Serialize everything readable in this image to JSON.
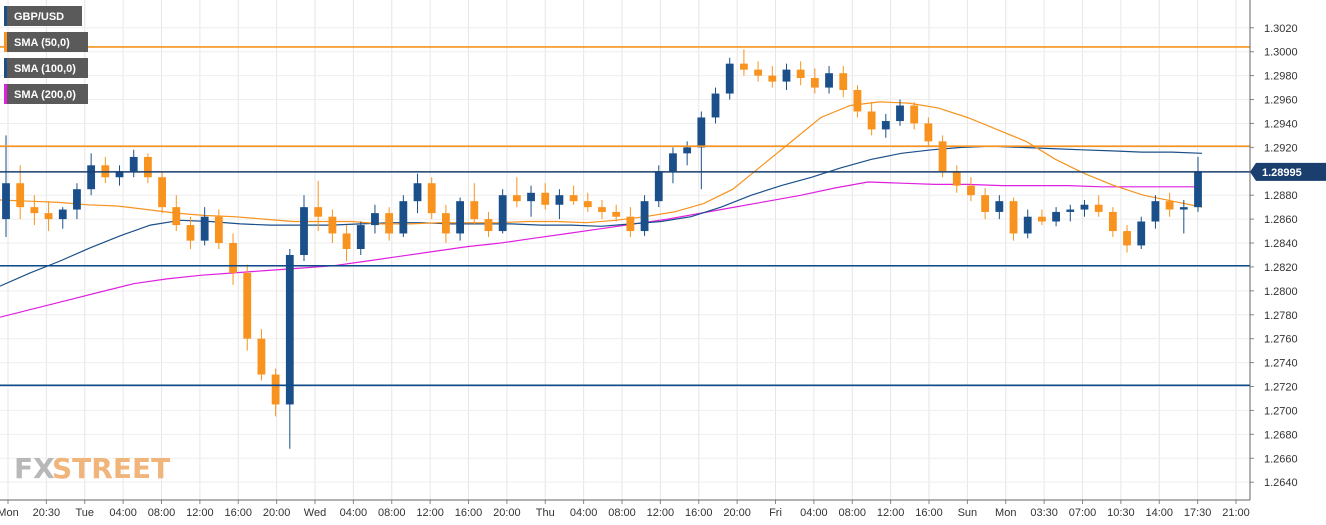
{
  "chart_data": {
    "type": "candlestick",
    "instrument": "GBP/USD",
    "current_price": "1.28995",
    "y_range": [
      1.2625,
      1.3035
    ],
    "y_ticks": [
      "1.3020",
      "1.3000",
      "1.2980",
      "1.2960",
      "1.2940",
      "1.2920",
      "1.2900",
      "1.2880",
      "1.2860",
      "1.2840",
      "1.2820",
      "1.2800",
      "1.2780",
      "1.2760",
      "1.2740",
      "1.2720",
      "1.2700",
      "1.2680",
      "1.2660",
      "1.2640"
    ],
    "x_ticks": [
      "Mon",
      "20:30",
      "Tue",
      "04:00",
      "08:00",
      "12:00",
      "16:00",
      "20:00",
      "Wed",
      "04:00",
      "08:00",
      "12:00",
      "16:00",
      "20:00",
      "Thu",
      "04:00",
      "08:00",
      "12:00",
      "16:00",
      "20:00",
      "Fri",
      "04:00",
      "08:00",
      "12:00",
      "16:00",
      "Sun",
      "Mon",
      "03:30",
      "07:00",
      "10:30",
      "14:00",
      "17:30",
      "21:00"
    ],
    "legend": [
      {
        "label": "GBP/USD",
        "color": "#1a4f8a"
      },
      {
        "label": "SMA (50,0)",
        "color": "#f7931e"
      },
      {
        "label": "SMA (100,0)",
        "color": "#1a4f8a"
      },
      {
        "label": "SMA (200,0)",
        "color": "#e020e0"
      }
    ],
    "horizontal_levels": [
      {
        "value": 1.3004,
        "color": "#f7931e"
      },
      {
        "value": 1.2921,
        "color": "#f7931e"
      },
      {
        "value": 1.28995,
        "color": "#1a3f6f"
      },
      {
        "value": 1.2821,
        "color": "#0d4a8a"
      },
      {
        "value": 1.2721,
        "color": "#0d4a8a"
      }
    ],
    "candles": [
      [
        1.286,
        1.293,
        1.2845,
        1.289
      ],
      [
        1.289,
        1.2905,
        1.286,
        1.287
      ],
      [
        1.287,
        1.288,
        1.2855,
        1.2865
      ],
      [
        1.2865,
        1.2875,
        1.285,
        1.286
      ],
      [
        1.286,
        1.287,
        1.2852,
        1.2868
      ],
      [
        1.2868,
        1.289,
        1.286,
        1.2885
      ],
      [
        1.2885,
        1.2915,
        1.288,
        1.2905
      ],
      [
        1.2905,
        1.2912,
        1.289,
        1.2895
      ],
      [
        1.2895,
        1.2905,
        1.2888,
        1.29
      ],
      [
        1.29,
        1.2918,
        1.2895,
        1.2912
      ],
      [
        1.2912,
        1.2915,
        1.289,
        1.2895
      ],
      [
        1.2895,
        1.29,
        1.2865,
        1.287
      ],
      [
        1.287,
        1.288,
        1.285,
        1.2855
      ],
      [
        1.2855,
        1.2862,
        1.2835,
        1.2842
      ],
      [
        1.2842,
        1.287,
        1.2838,
        1.2862
      ],
      [
        1.2862,
        1.2868,
        1.2835,
        1.284
      ],
      [
        1.284,
        1.2848,
        1.2805,
        1.2815
      ],
      [
        1.2815,
        1.2822,
        1.275,
        1.276
      ],
      [
        1.276,
        1.2768,
        1.2725,
        1.273
      ],
      [
        1.273,
        1.2735,
        1.2695,
        1.2705
      ],
      [
        1.2705,
        1.2835,
        1.2668,
        1.283
      ],
      [
        1.283,
        1.288,
        1.2825,
        1.287
      ],
      [
        1.287,
        1.2892,
        1.285,
        1.2862
      ],
      [
        1.2862,
        1.2868,
        1.284,
        1.2848
      ],
      [
        1.2848,
        1.2855,
        1.2825,
        1.2835
      ],
      [
        1.2835,
        1.2858,
        1.283,
        1.2855
      ],
      [
        1.2855,
        1.2872,
        1.2848,
        1.2865
      ],
      [
        1.2865,
        1.287,
        1.2842,
        1.2848
      ],
      [
        1.2848,
        1.288,
        1.2845,
        1.2875
      ],
      [
        1.2875,
        1.2898,
        1.2865,
        1.289
      ],
      [
        1.289,
        1.2895,
        1.286,
        1.2865
      ],
      [
        1.2865,
        1.2872,
        1.284,
        1.2848
      ],
      [
        1.2848,
        1.2878,
        1.2842,
        1.2875
      ],
      [
        1.2875,
        1.289,
        1.2855,
        1.286
      ],
      [
        1.286,
        1.2866,
        1.2845,
        1.285
      ],
      [
        1.285,
        1.2885,
        1.2848,
        1.288
      ],
      [
        1.288,
        1.2895,
        1.287,
        1.2875
      ],
      [
        1.2875,
        1.2888,
        1.2862,
        1.2882
      ],
      [
        1.2882,
        1.289,
        1.2868,
        1.2872
      ],
      [
        1.2872,
        1.2885,
        1.286,
        1.288
      ],
      [
        1.288,
        1.2888,
        1.2872,
        1.2875
      ],
      [
        1.2875,
        1.2882,
        1.2866,
        1.287
      ],
      [
        1.287,
        1.2876,
        1.286,
        1.2866
      ],
      [
        1.2866,
        1.2872,
        1.2858,
        1.2862
      ],
      [
        1.2862,
        1.287,
        1.2845,
        1.285
      ],
      [
        1.285,
        1.288,
        1.2846,
        1.2875
      ],
      [
        1.2875,
        1.2905,
        1.287,
        1.29
      ],
      [
        1.29,
        1.292,
        1.289,
        1.2915
      ],
      [
        1.2915,
        1.2925,
        1.2905,
        1.292
      ],
      [
        1.292,
        1.295,
        1.2885,
        1.2945
      ],
      [
        1.2945,
        1.297,
        1.294,
        1.2965
      ],
      [
        1.2965,
        1.2995,
        1.296,
        1.299
      ],
      [
        1.299,
        1.3002,
        1.298,
        1.2985
      ],
      [
        1.2985,
        1.2992,
        1.2975,
        1.298
      ],
      [
        1.298,
        1.2988,
        1.297,
        1.2975
      ],
      [
        1.2975,
        1.299,
        1.2968,
        1.2985
      ],
      [
        1.2985,
        1.2992,
        1.2972,
        1.2978
      ],
      [
        1.2978,
        1.2986,
        1.2965,
        1.297
      ],
      [
        1.297,
        1.2988,
        1.2965,
        1.2982
      ],
      [
        1.2982,
        1.2988,
        1.2962,
        1.2968
      ],
      [
        1.2968,
        1.2972,
        1.2945,
        1.295
      ],
      [
        1.295,
        1.2958,
        1.293,
        1.2935
      ],
      [
        1.2935,
        1.2948,
        1.2928,
        1.2942
      ],
      [
        1.2942,
        1.296,
        1.2938,
        1.2955
      ],
      [
        1.2955,
        1.2958,
        1.2935,
        1.294
      ],
      [
        1.294,
        1.2945,
        1.292,
        1.2925
      ],
      [
        1.2925,
        1.293,
        1.2895,
        1.29
      ],
      [
        1.29,
        1.2905,
        1.2882,
        1.2888
      ],
      [
        1.2888,
        1.2895,
        1.2875,
        1.288
      ],
      [
        1.288,
        1.2886,
        1.286,
        1.2866
      ],
      [
        1.2866,
        1.288,
        1.286,
        1.2875
      ],
      [
        1.2875,
        1.2878,
        1.2842,
        1.2848
      ],
      [
        1.2848,
        1.2868,
        1.2844,
        1.2862
      ],
      [
        1.2862,
        1.2868,
        1.2855,
        1.2858
      ],
      [
        1.2858,
        1.287,
        1.2854,
        1.2866
      ],
      [
        1.2866,
        1.2872,
        1.2858,
        1.2868
      ],
      [
        1.2868,
        1.2876,
        1.2862,
        1.2872
      ],
      [
        1.2872,
        1.288,
        1.2862,
        1.2866
      ],
      [
        1.2866,
        1.287,
        1.2845,
        1.285
      ],
      [
        1.285,
        1.2855,
        1.2832,
        1.2838
      ],
      [
        1.2838,
        1.2862,
        1.2835,
        1.2858
      ],
      [
        1.2858,
        1.288,
        1.2852,
        1.2875
      ],
      [
        1.2875,
        1.2882,
        1.2862,
        1.2868
      ],
      [
        1.2868,
        1.2876,
        1.2848,
        1.287
      ],
      [
        1.287,
        1.2912,
        1.2866,
        1.29
      ]
    ],
    "sma_50": [
      1.2876,
      1.2875,
      1.2874,
      1.2872,
      1.2871,
      1.2868,
      1.2865,
      1.2863,
      1.2862,
      1.286,
      1.2858,
      1.2858,
      1.2858,
      1.2856,
      1.2856,
      1.2857,
      1.2857,
      1.2857,
      1.2858,
      1.2858,
      1.2857,
      1.2859,
      1.2862,
      1.2866,
      1.2873,
      1.2885,
      1.2905,
      1.2925,
      1.2945,
      1.2955,
      1.2958,
      1.2957,
      1.2953,
      1.2945,
      1.2935,
      1.2925,
      1.291,
      1.2898,
      1.2888,
      1.288,
      1.2875,
      1.287
    ],
    "sma_100": [
      1.2804,
      1.2815,
      1.2825,
      1.2836,
      1.2846,
      1.2855,
      1.2859,
      1.2858,
      1.2856,
      1.2855,
      1.2855,
      1.2855,
      1.2856,
      1.2857,
      1.2857,
      1.2856,
      1.2856,
      1.2856,
      1.2855,
      1.2855,
      1.2854,
      1.2856,
      1.2858,
      1.2862,
      1.287,
      1.288,
      1.2888,
      1.2895,
      1.2903,
      1.291,
      1.2915,
      1.2918,
      1.292,
      1.2921,
      1.292,
      1.2919,
      1.2918,
      1.2917,
      1.2916,
      1.2916,
      1.2915
    ],
    "sma_200": [
      1.2778,
      1.2785,
      1.2792,
      1.2799,
      1.2806,
      1.281,
      1.2813,
      1.2815,
      1.2817,
      1.2819,
      1.2821,
      1.2825,
      1.2829,
      1.2833,
      1.2837,
      1.284,
      1.2844,
      1.2848,
      1.2852,
      1.2856,
      1.286,
      1.2865,
      1.287,
      1.2875,
      1.288,
      1.2886,
      1.2891,
      1.289,
      1.2889,
      1.2889,
      1.2888,
      1.2888,
      1.2888,
      1.2887,
      1.2887,
      1.2887,
      1.2887
    ]
  },
  "logo": "FXSTREET"
}
